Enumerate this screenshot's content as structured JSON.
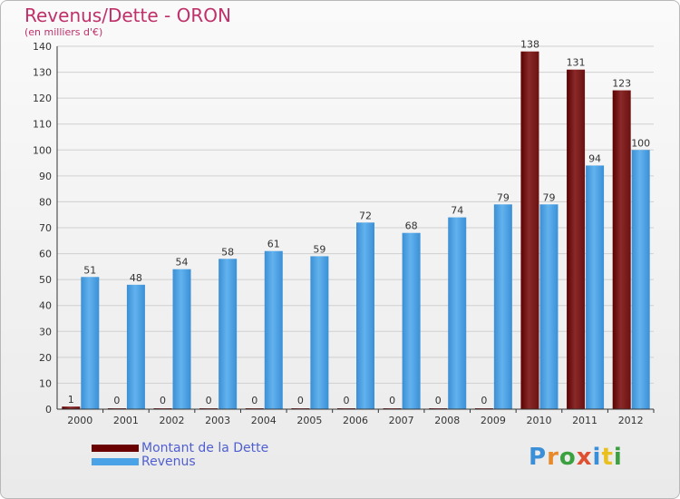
{
  "title": "Revenus/Dette - ORON",
  "subtitle": "(en milliers d'€)",
  "legend": [
    {
      "label": "Montant de la Dette",
      "color": "#6b0000"
    },
    {
      "label": "Revenus",
      "color": "#4aa3e6"
    }
  ],
  "logo": {
    "text": "Proxiti",
    "colors": [
      "#3a8fd8",
      "#e88a2a",
      "#3aa040",
      "#e05030",
      "#3a8fd8",
      "#e8c020",
      "#3aa040"
    ]
  },
  "colors": {
    "dette": "#6b0000",
    "revenus": "#4aa3e6",
    "grid": "#d0d0d0"
  },
  "chart_data": {
    "type": "bar",
    "categories": [
      "2000",
      "2001",
      "2002",
      "2003",
      "2004",
      "2005",
      "2006",
      "2007",
      "2008",
      "2009",
      "2010",
      "2011",
      "2012"
    ],
    "series": [
      {
        "name": "Montant de la Dette",
        "values": [
          1,
          0,
          0,
          0,
          0,
          0,
          0,
          0,
          0,
          0,
          138,
          131,
          123
        ]
      },
      {
        "name": "Revenus",
        "values": [
          51,
          48,
          54,
          58,
          61,
          59,
          72,
          68,
          74,
          79,
          79,
          94,
          100
        ]
      }
    ],
    "ylim": [
      0,
      140
    ],
    "yticks": [
      0,
      10,
      20,
      30,
      40,
      50,
      60,
      70,
      80,
      90,
      100,
      110,
      120,
      130,
      140
    ],
    "grid": true,
    "legend_position": "bottom-left"
  }
}
